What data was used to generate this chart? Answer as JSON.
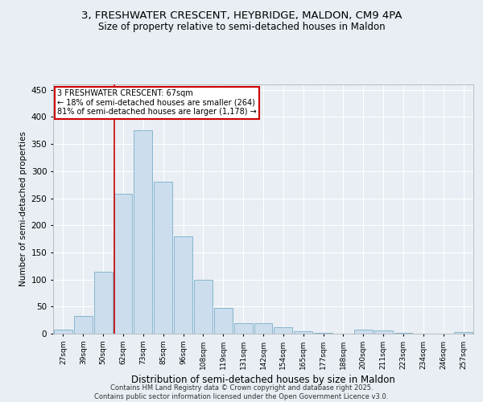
{
  "title": "3, FRESHWATER CRESCENT, HEYBRIDGE, MALDON, CM9 4PA",
  "subtitle": "Size of property relative to semi-detached houses in Maldon",
  "xlabel": "Distribution of semi-detached houses by size in Maldon",
  "ylabel": "Number of semi-detached properties",
  "categories": [
    "27sqm",
    "39sqm",
    "50sqm",
    "62sqm",
    "73sqm",
    "85sqm",
    "96sqm",
    "108sqm",
    "119sqm",
    "131sqm",
    "142sqm",
    "154sqm",
    "165sqm",
    "177sqm",
    "188sqm",
    "200sqm",
    "211sqm",
    "223sqm",
    "234sqm",
    "246sqm",
    "257sqm"
  ],
  "values": [
    7,
    33,
    115,
    258,
    375,
    280,
    180,
    100,
    47,
    20,
    20,
    12,
    5,
    1,
    0,
    7,
    6,
    1,
    0,
    0,
    3
  ],
  "bar_color": "#ccdded",
  "bar_edge_color": "#7aafc8",
  "bg_color": "#e8eef4",
  "grid_color": "#ffffff",
  "annotation_text": "3 FRESHWATER CRESCENT: 67sqm\n← 18% of semi-detached houses are smaller (264)\n81% of semi-detached houses are larger (1,178) →",
  "annotation_box_color": "#ffffff",
  "annotation_edge_color": "#cc0000",
  "vline_color": "#cc0000",
  "footer": "Contains HM Land Registry data © Crown copyright and database right 2025.\nContains public sector information licensed under the Open Government Licence v3.0.",
  "ylim": [
    0,
    460
  ],
  "yticks": [
    0,
    50,
    100,
    150,
    200,
    250,
    300,
    350,
    400,
    450
  ]
}
